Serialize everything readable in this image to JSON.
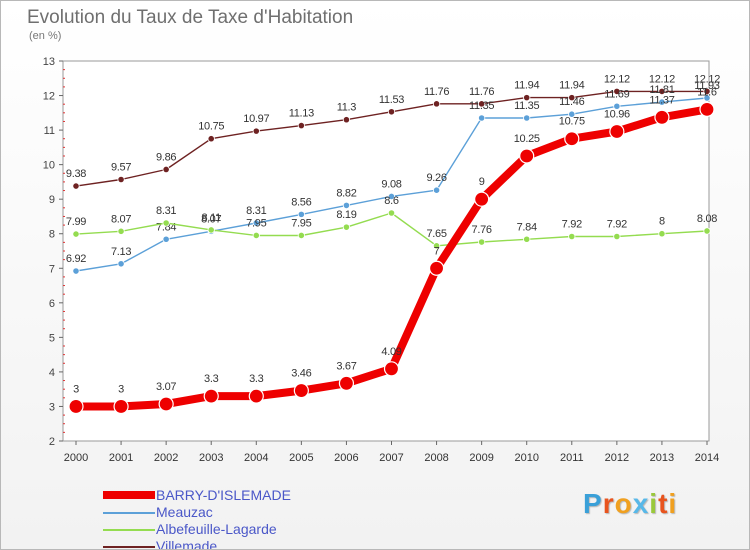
{
  "header": {
    "title": "Evolution du Taux de Taxe d'Habitation",
    "subtitle": "(en %)"
  },
  "legend": {
    "items": [
      {
        "label": "BARRY-D'ISLEMADE",
        "color": "#ee0000"
      },
      {
        "label": "Meauzac",
        "color": "#5ca0d8"
      },
      {
        "label": "Albefeuille-Lagarde",
        "color": "#94dc50"
      },
      {
        "label": "Villemade",
        "color": "#6e2222"
      }
    ]
  },
  "logo": {
    "letters": [
      {
        "char": "P",
        "color": "#3aa0d8"
      },
      {
        "char": "r",
        "color": "#e8541e"
      },
      {
        "char": "o",
        "color": "#f0a020"
      },
      {
        "char": "x",
        "color": "#58b8e8"
      },
      {
        "char": "i",
        "color": "#9ac83c"
      },
      {
        "char": "t",
        "color": "#e8541e"
      },
      {
        "char": "i",
        "color": "#f0a020"
      }
    ]
  },
  "chart_data": {
    "type": "line",
    "title": "Evolution du Taux de Taxe d'Habitation",
    "subtitle": "(en %)",
    "xlabel": "",
    "ylabel": "",
    "x": [
      "2000",
      "2001",
      "2002",
      "2003",
      "2004",
      "2005",
      "2006",
      "2007",
      "2008",
      "2009",
      "2010",
      "2011",
      "2012",
      "2013",
      "2014"
    ],
    "ylim": [
      2,
      13
    ],
    "yticks": [
      2,
      3,
      4,
      5,
      6,
      7,
      8,
      9,
      10,
      11,
      12,
      13
    ],
    "grid": false,
    "legend_position": "bottom-left",
    "series": [
      {
        "name": "Villemade",
        "color": "#6e2222",
        "values": [
          9.38,
          9.57,
          9.86,
          10.75,
          10.97,
          11.13,
          11.3,
          11.53,
          11.76,
          11.76,
          11.94,
          11.94,
          12.12,
          12.12,
          12.12
        ],
        "labels": [
          "9.38",
          "9.57",
          "9.86",
          "10.75",
          "10.97",
          "11.13",
          "11.3",
          "11.53",
          "11.76",
          "11.76",
          "11.94",
          "11.94",
          "12.12",
          "12.12",
          "12.12"
        ]
      },
      {
        "name": "Meauzac",
        "color": "#5ca0d8",
        "values": [
          6.92,
          7.13,
          7.84,
          8.07,
          8.31,
          8.56,
          8.82,
          9.08,
          9.26,
          11.35,
          11.35,
          11.46,
          11.69,
          11.81,
          11.93
        ],
        "labels": [
          "6.92",
          "7.13",
          "7.84",
          "8.07",
          "8.31",
          "8.56",
          "8.82",
          "9.08",
          "9.26",
          "11.35",
          "11.35",
          "11.46",
          "11.69",
          "11.81",
          "11.93"
        ]
      },
      {
        "name": "Albefeuille-Lagarde",
        "color": "#94dc50",
        "values": [
          7.99,
          8.07,
          8.31,
          8.11,
          7.95,
          7.95,
          8.19,
          8.6,
          7.65,
          7.76,
          7.84,
          7.92,
          7.92,
          8.0,
          8.08
        ],
        "labels": [
          "7.99",
          "8.07",
          "8.31",
          "8.11",
          "7.95",
          "7.95",
          "8.19",
          "8.6",
          "7.65",
          "7.76",
          "7.84",
          "7.92",
          "7.92",
          "8",
          "8.08"
        ]
      },
      {
        "name": "BARRY-D'ISLEMADE",
        "color": "#ee0000",
        "values": [
          3.0,
          3.0,
          3.07,
          3.3,
          3.3,
          3.46,
          3.67,
          4.09,
          7.0,
          9.0,
          10.25,
          10.75,
          10.96,
          11.37,
          11.6
        ],
        "labels": [
          "3",
          "3",
          "3.07",
          "3.3",
          "3.3",
          "3.46",
          "3.67",
          "4.09",
          "7",
          "9",
          "10.25",
          "10.75",
          "10.96",
          "11.37",
          "11.6"
        ]
      }
    ]
  }
}
